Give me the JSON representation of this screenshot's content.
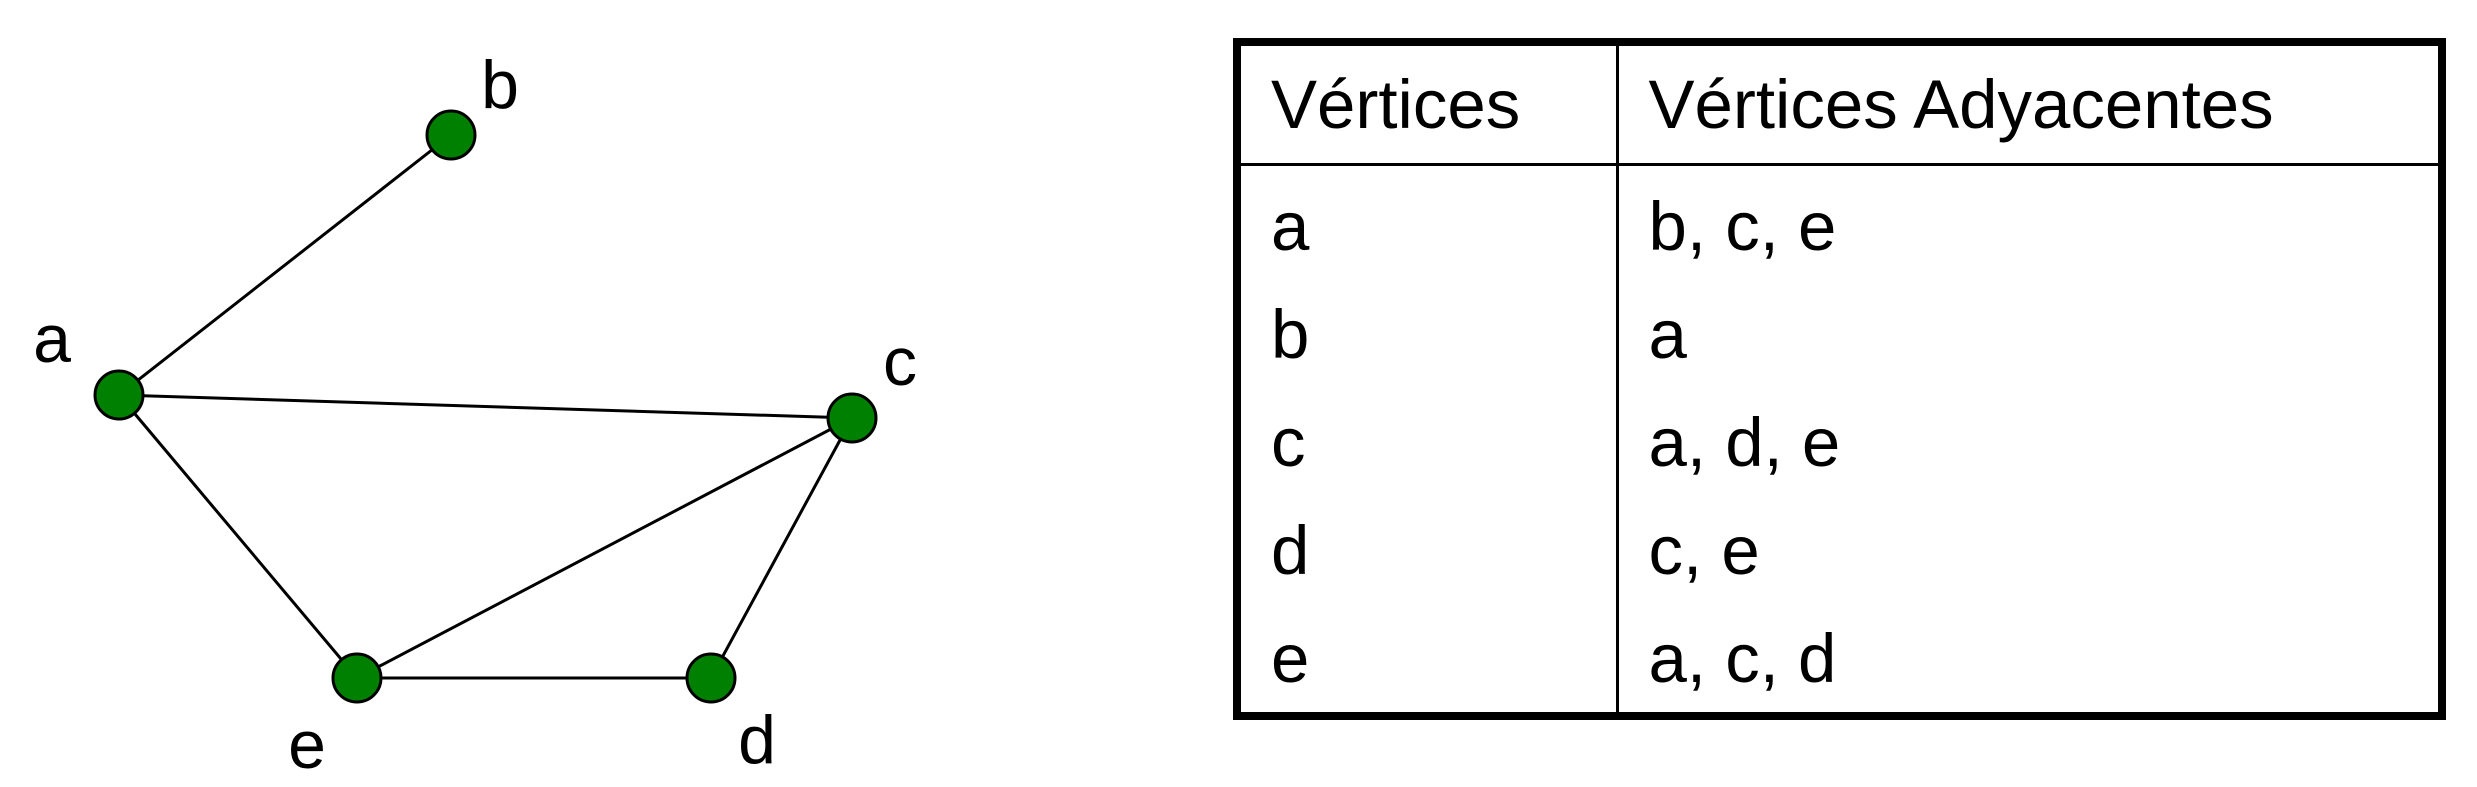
{
  "graph": {
    "node_color": "#008000",
    "nodes": [
      {
        "id": "a",
        "label": "a"
      },
      {
        "id": "b",
        "label": "b"
      },
      {
        "id": "c",
        "label": "c"
      },
      {
        "id": "d",
        "label": "d"
      },
      {
        "id": "e",
        "label": "e"
      }
    ],
    "edges": [
      [
        "a",
        "b"
      ],
      [
        "a",
        "c"
      ],
      [
        "a",
        "e"
      ],
      [
        "c",
        "e"
      ],
      [
        "c",
        "d"
      ],
      [
        "e",
        "d"
      ]
    ]
  },
  "table": {
    "headers": [
      "Vértices",
      "Vértices Adyacentes"
    ],
    "rows": [
      [
        "a",
        "b, c, e"
      ],
      [
        "b",
        "a"
      ],
      [
        "c",
        "a, d, e"
      ],
      [
        "d",
        "c, e"
      ],
      [
        "e",
        "a, c, d"
      ]
    ]
  }
}
